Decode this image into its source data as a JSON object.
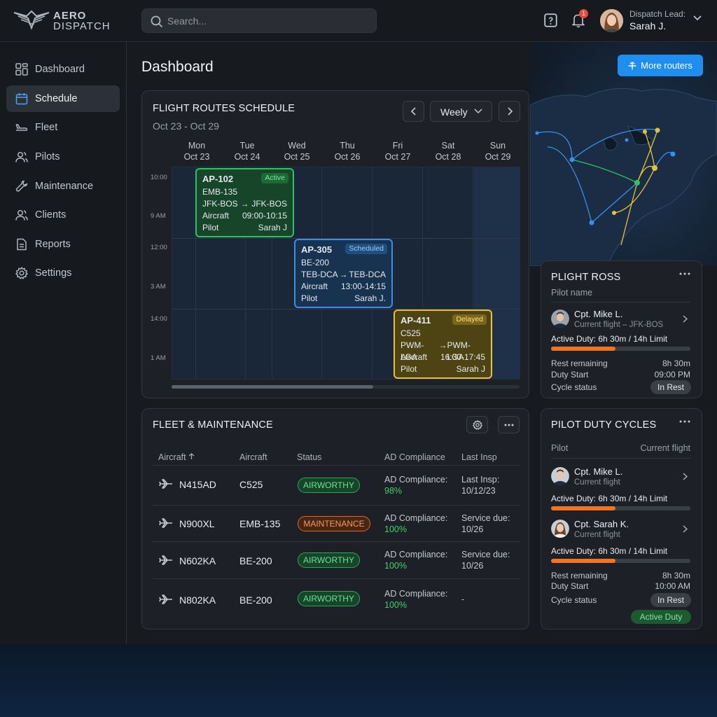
{
  "brand": {
    "line1": "AERO",
    "line2": "DISPATCH"
  },
  "search": {
    "placeholder": "Search..."
  },
  "notifications": {
    "count": "1"
  },
  "user": {
    "role": "Dispatch Lead:",
    "name": "Sarah J."
  },
  "sidebar": {
    "items": [
      {
        "label": "Dashboard",
        "icon": "grid-icon"
      },
      {
        "label": "Schedule",
        "icon": "calendar-icon",
        "active": true
      },
      {
        "label": "Fleet",
        "icon": "plane-icon"
      },
      {
        "label": "Pilots",
        "icon": "people-icon"
      },
      {
        "label": "Maintenance",
        "icon": "wrench-icon"
      },
      {
        "label": "Clients",
        "icon": "people-icon"
      },
      {
        "label": "Reports",
        "icon": "document-icon"
      },
      {
        "label": "Settings",
        "icon": "gear-icon"
      }
    ]
  },
  "page": {
    "title": "Dashboard",
    "more_button": "More routers"
  },
  "schedule": {
    "title": "FLIGHT ROUTES SCHEDULE",
    "range": "Oct 23 - Oct 29",
    "view": "Weely",
    "days": [
      {
        "name": "Mon",
        "date": "Oct 23"
      },
      {
        "name": "Tue",
        "date": "Oct 24"
      },
      {
        "name": "Wed",
        "date": "Oct 25"
      },
      {
        "name": "Thu",
        "date": "Oct 26"
      },
      {
        "name": "Fri",
        "date": "Oct 27"
      },
      {
        "name": "Sat",
        "date": "Oct 28"
      },
      {
        "name": "Sun",
        "date": "Oct 29"
      }
    ],
    "times": [
      "10:00",
      "9 AM",
      "12:00",
      "3 AM",
      "14:00",
      "1 AM"
    ],
    "flights": [
      {
        "id": "AP-102",
        "status": "Active",
        "type": "EMB-135",
        "from": "JFK-BOS",
        "arrow": "→",
        "to": "JFK-BOS",
        "aircraft_label": "Aircraft",
        "time": "09:00-10:15",
        "pilot_label": "Pilot",
        "pilot": "Sarah J"
      },
      {
        "id": "AP-305",
        "status": "Scheduled",
        "type": "BE-200",
        "from": "TEB-DCA",
        "arrow": "→",
        "to": "TEB-DCA",
        "aircraft_label": "Aircraft",
        "time": "13:00-14:15",
        "pilot_label": "Pilot",
        "pilot": "Sarah J."
      },
      {
        "id": "AP-411",
        "status": "Delayed",
        "type": "C525",
        "from": "PWM-LGA",
        "arrow": "→",
        "to": "PWM-LGA",
        "aircraft_label": "Aircraft",
        "time": "16:30-17:45",
        "pilot_label": "Pilot",
        "pilot": "Sarah J"
      }
    ]
  },
  "fleet": {
    "title": "FLEET & MAINTENANCE",
    "columns": [
      "Aircraft",
      "Aircraft",
      "Status",
      "AD Compliance",
      "Last Insp"
    ],
    "rows": [
      {
        "tail": "N415AD",
        "model": "C525",
        "status": "AIRWORTHY",
        "kind": "ok",
        "ad_label": "AD Compliance:",
        "ad_value": "98%",
        "insp_label": "Last Insp:",
        "insp_value": "10/12/23"
      },
      {
        "tail": "N900XL",
        "model": "EMB-135",
        "status": "MAINTENANCE",
        "kind": "mt",
        "ad_label": "AD Compliance:",
        "ad_value": "100%",
        "insp_label": "Service due:",
        "insp_value": "10/26"
      },
      {
        "tail": "N602KA",
        "model": "BE-200",
        "status": "AIRWORTHY",
        "kind": "ok",
        "ad_label": "AD Compliance:",
        "ad_value": "100%",
        "insp_label": "Service due:",
        "insp_value": "10/26"
      },
      {
        "tail": "N802KA",
        "model": "BE-200",
        "status": "AIRWORTHY",
        "kind": "ok",
        "ad_label": "AD Compliance:",
        "ad_value": "100%",
        "insp_label": "-",
        "insp_value": ""
      }
    ]
  },
  "roster": {
    "title": "PLIGHT ROSS",
    "subtitle": "Pilot name",
    "pilot_name": "Cpt. Mike L.",
    "pilot_current": "Current flight – JFK-BOS",
    "duty": "Active Duty: 6h 30m / 14h Limit",
    "duty_fraction": 0.46,
    "rest_label": "Rest remaining",
    "rest_value": "8h 30m",
    "start_label": "Duty Start",
    "start_value": "09:00 PM",
    "cycle_label": "Cycle status",
    "cycle_value": "In Rest"
  },
  "duty_cycles": {
    "title": "PILOT DUTY CYCLES",
    "col_pilot": "Pilot",
    "col_flight": "Current flight",
    "pilots": [
      {
        "name": "Cpt. Mike L.",
        "current": "Current flight",
        "duty": "Active Duty: 6h 30m / 14h Limit",
        "duty_fraction": 0.46
      },
      {
        "name": "Cpt. Sarah K.",
        "current": "Current flight",
        "duty": "Active Duty: 6h 30m / 14h Limit",
        "duty_fraction": 0.46
      }
    ],
    "rest_label": "Rest remaining",
    "rest_value": "8h 30m",
    "start_label": "Duty Start",
    "start_value": "10:00 AM",
    "cycle_label": "Cycle status",
    "cycle_value": "In Rest",
    "active_tag": "Active Duty"
  },
  "colors": {
    "accent": "#1e8ef0",
    "active": "#32c15e",
    "scheduled": "#3a8fe6",
    "delayed": "#e6c139",
    "duty_bar": "#f2751e"
  }
}
